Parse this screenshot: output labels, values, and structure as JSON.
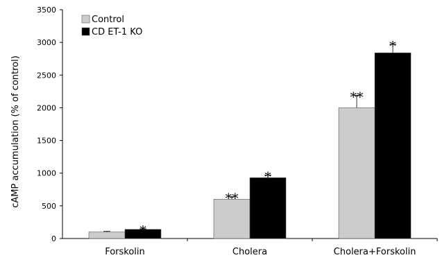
{
  "chart_data": {
    "type": "bar",
    "ylabel": "cAMP accumulation (% of control)",
    "ylim": [
      0,
      3500
    ],
    "yticks": [
      0,
      500,
      1000,
      1500,
      2000,
      2500,
      3000,
      3500
    ],
    "categories": [
      "Forskolin",
      "Cholera",
      "Cholera+Forskolin"
    ],
    "legend_position": "top-left",
    "grid": false,
    "series": [
      {
        "name": "Control",
        "color": "#cccccc",
        "values": [
          100,
          600,
          2000
        ],
        "errors": [
          10,
          40,
          190
        ],
        "significance": [
          "",
          "**",
          "**"
        ]
      },
      {
        "name": "CD ET-1 KO",
        "color": "#000000",
        "values": [
          140,
          930,
          2840
        ],
        "errors": [
          10,
          40,
          130
        ],
        "significance": [
          "*",
          "*",
          "*"
        ]
      }
    ]
  }
}
